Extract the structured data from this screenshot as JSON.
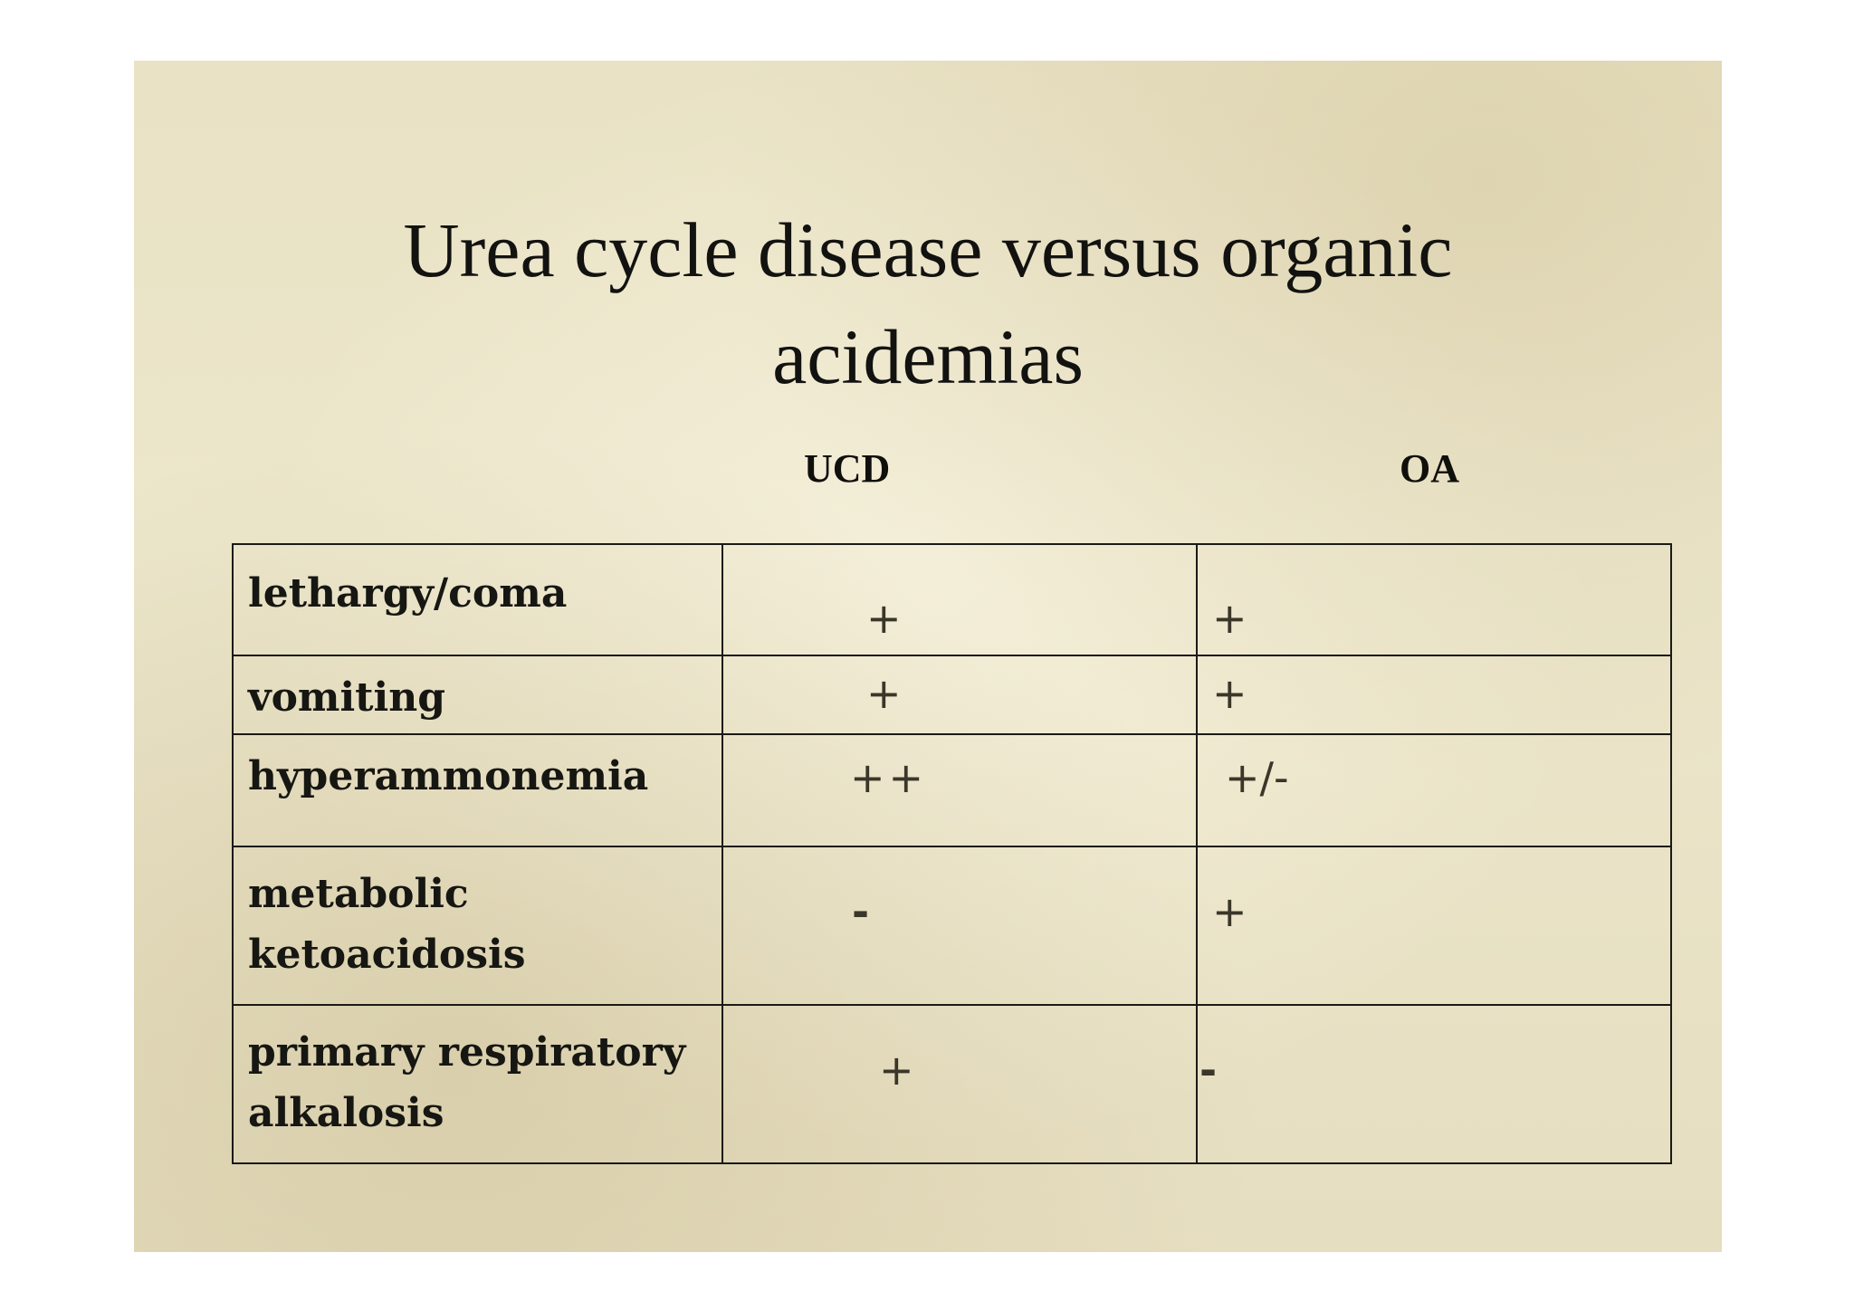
{
  "slide": {
    "title_line1": "Urea cycle disease versus organic",
    "title_line2": "acidemias",
    "column_headers": {
      "ucd": "UCD",
      "oa": "OA"
    },
    "rows": [
      {
        "label": "lethargy/coma",
        "ucd": "+",
        "oa": "+"
      },
      {
        "label": "vomiting",
        "ucd": "+",
        "oa": "+"
      },
      {
        "label": "hyperammonemia",
        "ucd": "++",
        "oa": "+/-"
      },
      {
        "label_line1": "metabolic",
        "label_line2": "ketoacidosis",
        "ucd": "-",
        "oa": "+"
      },
      {
        "label_line1": "primary respiratory",
        "label_line2": "alkalosis",
        "ucd": "+",
        "oa": "-"
      }
    ]
  }
}
